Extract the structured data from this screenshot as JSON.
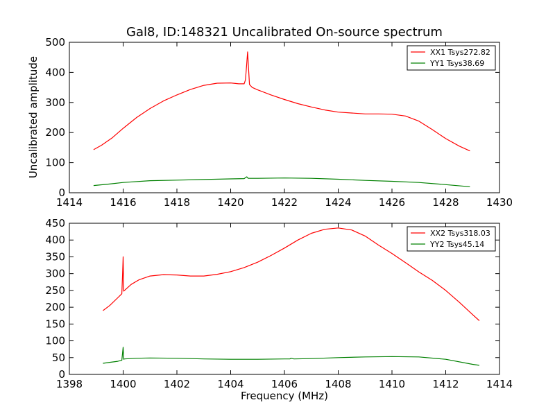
{
  "chart_data": {
    "type": "line",
    "title": "Gal8, ID:148321 Uncalibrated On-source spectrum",
    "xlabel": "Frequency (MHz)",
    "ylabel": "Uncalibrated amplitude",
    "line_colors": {
      "XX": "#ff0000",
      "YY": "#008000"
    },
    "panels": [
      {
        "name": "top",
        "xlim": [
          1414,
          1430
        ],
        "ylim": [
          0,
          500
        ],
        "xticks": [
          1414,
          1416,
          1418,
          1420,
          1422,
          1424,
          1426,
          1428,
          1430
        ],
        "yticks": [
          0,
          100,
          200,
          300,
          400,
          500
        ],
        "legend_position": "top-right",
        "series": [
          {
            "name": "XX1 Tsys272.82",
            "key": "XX",
            "x": [
              1414.9,
              1415.2,
              1415.6,
              1416.0,
              1416.5,
              1417.0,
              1417.5,
              1418.0,
              1418.5,
              1419.0,
              1419.5,
              1420.0,
              1420.3,
              1420.5,
              1420.55,
              1420.6,
              1420.63,
              1420.66,
              1420.7,
              1420.8,
              1421.0,
              1421.5,
              1422.0,
              1422.5,
              1423.0,
              1423.5,
              1424.0,
              1424.5,
              1425.0,
              1425.5,
              1426.0,
              1426.5,
              1427.0,
              1427.5,
              1428.0,
              1428.5,
              1428.9
            ],
            "y": [
              143,
              158,
              183,
              214,
              250,
              280,
              305,
              325,
              343,
              357,
              364,
              365,
              362,
              362,
              375,
              430,
              468,
              420,
              360,
              350,
              342,
              325,
              310,
              296,
              285,
              275,
              268,
              265,
              262,
              262,
              261,
              255,
              238,
              210,
              180,
              155,
              139
            ]
          },
          {
            "name": "YY1 Tsys38.69",
            "key": "YY",
            "x": [
              1414.9,
              1415.5,
              1416.0,
              1417.0,
              1418.0,
              1419.0,
              1420.0,
              1420.5,
              1420.6,
              1420.65,
              1420.7,
              1421.0,
              1422.0,
              1423.0,
              1424.0,
              1425.0,
              1426.0,
              1427.0,
              1428.0,
              1428.9
            ],
            "y": [
              24,
              29,
              34,
              40,
              42,
              44,
              46,
              47,
              53,
              48,
              48,
              48,
              49,
              48,
              45,
              41,
              38,
              34,
              27,
              20
            ]
          }
        ]
      },
      {
        "name": "bottom",
        "xlim": [
          1398,
          1414
        ],
        "ylim": [
          0,
          450
        ],
        "xticks": [
          1398,
          1400,
          1402,
          1404,
          1406,
          1408,
          1410,
          1412,
          1414
        ],
        "yticks": [
          0,
          50,
          100,
          150,
          200,
          250,
          300,
          350,
          400,
          450
        ],
        "legend_position": "top-right",
        "series": [
          {
            "name": "XX2 Tsys318.03",
            "key": "XX",
            "x": [
              1399.25,
              1399.5,
              1399.8,
              1399.95,
              1399.98,
              1400.0,
              1400.02,
              1400.05,
              1400.3,
              1400.6,
              1401.0,
              1401.5,
              1402.0,
              1402.5,
              1403.0,
              1403.5,
              1404.0,
              1404.5,
              1405.0,
              1405.5,
              1406.0,
              1406.5,
              1407.0,
              1407.5,
              1408.0,
              1408.5,
              1409.0,
              1409.5,
              1410.0,
              1410.5,
              1411.0,
              1411.5,
              1412.0,
              1412.5,
              1413.0,
              1413.25
            ],
            "y": [
              190,
              205,
              228,
              240,
              300,
              350,
              248,
              250,
              268,
              282,
              293,
              297,
              296,
              293,
              293,
              298,
              306,
              318,
              334,
              354,
              376,
              400,
              420,
              432,
              436,
              430,
              412,
              385,
              360,
              333,
              305,
              280,
              250,
              215,
              178,
              160
            ]
          },
          {
            "name": "YY2 Tsys45.14",
            "key": "YY",
            "x": [
              1399.25,
              1399.5,
              1399.8,
              1399.95,
              1399.98,
              1400.0,
              1400.02,
              1400.05,
              1400.5,
              1401.0,
              1402.0,
              1403.0,
              1404.0,
              1405.0,
              1406.0,
              1406.2,
              1406.25,
              1406.35,
              1407.0,
              1408.0,
              1409.0,
              1410.0,
              1411.0,
              1412.0,
              1413.0,
              1413.25
            ],
            "y": [
              33,
              36,
              39,
              42,
              65,
              81,
              45,
              46,
              48,
              49,
              48,
              46,
              45,
              45,
              46,
              46,
              48,
              46,
              47,
              50,
              52,
              53,
              52,
              45,
              30,
              27
            ]
          }
        ]
      }
    ]
  }
}
